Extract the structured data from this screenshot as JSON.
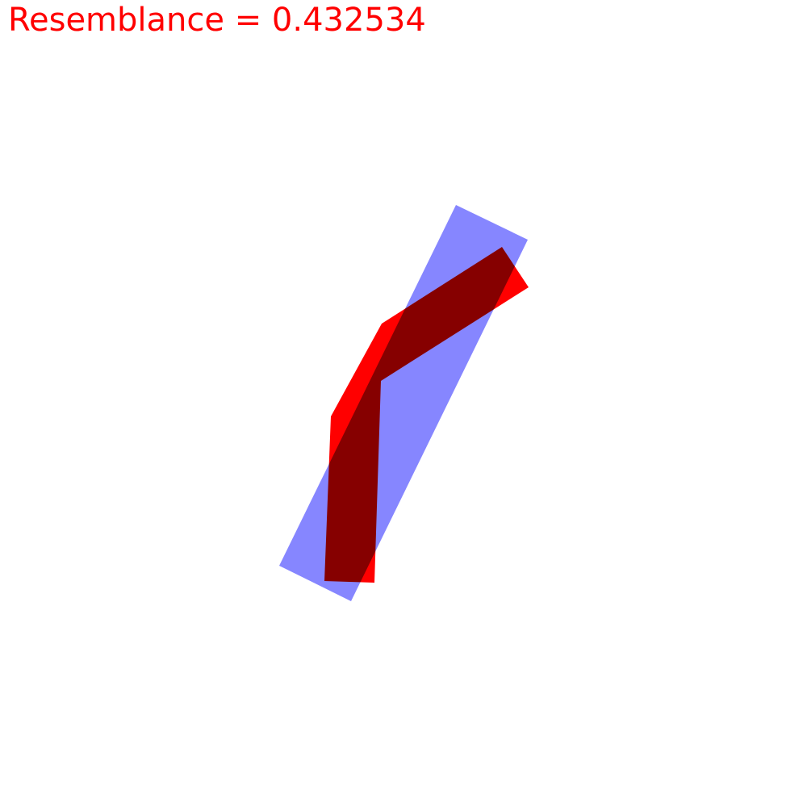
{
  "score": {
    "label": "Resemblance = 0.432534",
    "color": "#ff0000"
  },
  "shapes": {
    "target_polygon": {
      "icon": "bent-polyline-shape",
      "fill": "#ff0000"
    },
    "candidate_rectangle": {
      "icon": "rotated-rectangle-shape",
      "fill": "#8080ff",
      "opacity": 0.95
    }
  }
}
